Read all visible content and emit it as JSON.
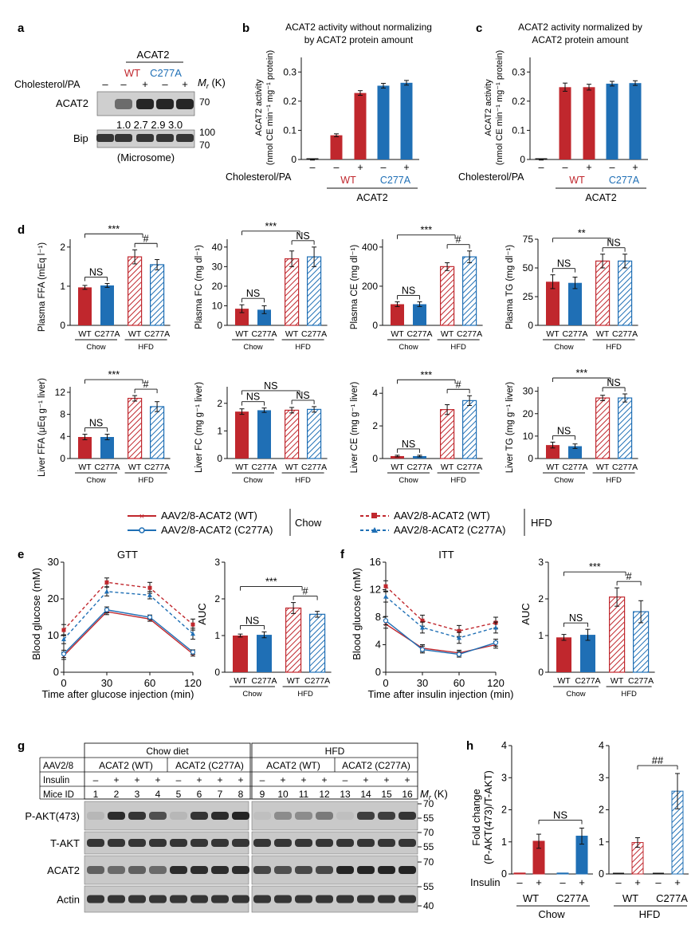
{
  "colors": {
    "wt": "#c0272d",
    "c277a": "#1f6fb5",
    "blot_dark": "#1b1b1b",
    "blot_bg": "#c9c9c9",
    "axis": "#111111"
  },
  "panel_letters": [
    "a",
    "b",
    "c",
    "d",
    "e",
    "f",
    "g",
    "h"
  ],
  "panel_a": {
    "header": "ACAT2",
    "wt": "WT",
    "c277a": "C277A",
    "row_label": "Cholesterol/PA",
    "signs": [
      "–",
      "–",
      "+",
      "–",
      "+"
    ],
    "mr_prefix": "M",
    "mr_sub": "r",
    "mr_unit": " (K)",
    "blot_labels": [
      "ACAT2",
      "Bip"
    ],
    "mw_acat2": "70",
    "mw_bip": [
      "100",
      "70"
    ],
    "quant": "1.0 2.7 2.9 3.0",
    "sample": "(Microsome)"
  },
  "panel_b": {
    "title_line1": "ACAT2 activity without normalizing",
    "title_line2": "by ACAT2 protein amount",
    "ylabel_line1": "ACAT2 activity",
    "ylabel_line2": "(nmol CE min⁻¹ mg⁻¹ protein)",
    "yticks": [
      "0",
      "0.1",
      "0.2",
      "0.3"
    ],
    "row_label": "Cholesterol/PA",
    "signs": [
      "–",
      "–",
      "+",
      "–",
      "+"
    ],
    "wt": "WT",
    "c277a": "C277A",
    "group": "ACAT2"
  },
  "panel_c": {
    "title_line1": "ACAT2 activity normalized by",
    "title_line2": "ACAT2 protein amount",
    "ylabel_line1": "ACAT2 activity",
    "ylabel_line2": "(nmol CE min⁻¹ mg⁻¹ protein)",
    "yticks": [
      "0",
      "0.1",
      "0.2",
      "0.3"
    ],
    "row_label": "Cholesterol/PA",
    "signs": [
      "–",
      "–",
      "+",
      "–",
      "+"
    ],
    "wt": "WT",
    "c277a": "C277A",
    "group": "ACAT2"
  },
  "panel_d": {
    "xlabels": [
      "WT",
      "C277A",
      "WT",
      "C277A"
    ],
    "groups": [
      "Chow",
      "HFD"
    ],
    "plots": [
      {
        "ylabel": "Plasma FFA (mEq l⁻¹)",
        "yticks": [
          "0",
          "1",
          "2"
        ],
        "sig1": "NS",
        "sig2": "***",
        "sig3": "#"
      },
      {
        "ylabel": "Plasma FC (mg dl⁻¹)",
        "yticks": [
          "0",
          "10",
          "20",
          "30",
          "40"
        ],
        "sig1": "NS",
        "sig2": "***",
        "sig3": "NS"
      },
      {
        "ylabel": "Plasma CE (mg dl⁻¹)",
        "yticks": [
          "0",
          "200",
          "400"
        ],
        "sig1": "NS",
        "sig2": "***",
        "sig3": "#"
      },
      {
        "ylabel": "Plasma TG (mg dl⁻¹)",
        "yticks": [
          "0",
          "25",
          "50",
          "75"
        ],
        "sig1": "NS",
        "sig2": "**",
        "sig3": "NS"
      },
      {
        "ylabel": "Liver FFA (μEq g⁻¹ liver)",
        "yticks": [
          "0",
          "4",
          "8",
          "12"
        ],
        "sig1": "NS",
        "sig2": "***",
        "sig3": "#"
      },
      {
        "ylabel": "Liver FC (mg g⁻¹ liver)",
        "yticks": [
          "0",
          "1",
          "2"
        ],
        "sig1": "NS",
        "sig2": "NS",
        "sig3": "NS"
      },
      {
        "ylabel": "Liver CE (mg g⁻¹ liver)",
        "yticks": [
          "0",
          "2",
          "4"
        ],
        "sig1": "NS",
        "sig2": "***",
        "sig3": "#"
      },
      {
        "ylabel": "Liver TG (mg g⁻¹ liver)",
        "yticks": [
          "0",
          "10",
          "20",
          "30"
        ],
        "sig1": "NS",
        "sig2": "***",
        "sig3": "NS"
      }
    ]
  },
  "legend": {
    "chow_wt": "AAV2/8-ACAT2 (WT)",
    "chow_c277a": "AAV2/8-ACAT2 (C277A)",
    "chow": "Chow",
    "hfd_wt": "AAV2/8-ACAT2 (WT)",
    "hfd_c277a": "AAV2/8-ACAT2 (C277A)",
    "hfd": "HFD"
  },
  "panel_e": {
    "title": "GTT",
    "ylabel": "Blood glucose (mM)",
    "xlabel": "Time after glucose injection (min)",
    "xticks": [
      "0",
      "30",
      "60",
      "120"
    ],
    "yticks": [
      "0",
      "10",
      "20",
      "30"
    ],
    "auc_label": "AUC",
    "auc_yticks": [
      "0",
      "1",
      "2",
      "3"
    ],
    "sig1": "NS",
    "sig2": "***",
    "sig3": "#"
  },
  "panel_f": {
    "title": "ITT",
    "ylabel": "Blood glucose (mM)",
    "xlabel": "Time after insulin injection (min)",
    "xticks": [
      "0",
      "30",
      "60",
      "120"
    ],
    "yticks": [
      "0",
      "4",
      "8",
      "12",
      "16"
    ],
    "auc_label": "AUC",
    "auc_yticks": [
      "0",
      "1",
      "2",
      "3"
    ],
    "sig1": "NS",
    "sig2": "***",
    "sig3": "#"
  },
  "panel_g": {
    "aav": "AAV2/8",
    "chow_diet": "Chow diet",
    "hfd": "HFD",
    "acat2_wt": "ACAT2 (WT)",
    "acat2_c277a": "ACAT2 (C277A)",
    "insulin": "Insulin",
    "mice_id": "Mice ID",
    "insulin_signs": [
      "–",
      "+",
      "+",
      "+",
      "–",
      "+",
      "+",
      "+",
      "–",
      "+",
      "+",
      "+",
      "–",
      "+",
      "+",
      "+"
    ],
    "mice": [
      "1",
      "2",
      "3",
      "4",
      "5",
      "6",
      "7",
      "8",
      "9",
      "10",
      "11",
      "12",
      "13",
      "14",
      "15",
      "16"
    ],
    "mr_prefix": "M",
    "mr_sub": "r",
    "mr_unit": " (K)",
    "blot_labels": [
      "P-AKT(473)",
      "T-AKT",
      "ACAT2",
      "Actin"
    ],
    "mw": [
      "70",
      "55",
      "70",
      "55",
      "70",
      "55",
      "40"
    ]
  },
  "panel_h": {
    "ylabel_line1": "Fold change",
    "ylabel_line2": "(P-AKT(473)/T-AKT)",
    "yticks": [
      "0",
      "1",
      "2",
      "3",
      "4"
    ],
    "insulin": "Insulin",
    "signs": [
      "–",
      "+",
      "–",
      "+"
    ],
    "wt": "WT",
    "c277a": "C277A",
    "chow": "Chow",
    "hfd": "HFD",
    "sig_chow": "NS",
    "sig_hfd": "##"
  },
  "chart_data": [
    {
      "type": "bar",
      "panel": "b",
      "categories": [
        "–",
        "WT –",
        "WT +",
        "C277A –",
        "C277A +"
      ],
      "values": [
        0.0,
        0.083,
        0.228,
        0.253,
        0.263
      ],
      "errors": [
        0.002,
        0.005,
        0.008,
        0.008,
        0.008
      ],
      "ylim": [
        0,
        0.35
      ]
    },
    {
      "type": "bar",
      "panel": "c",
      "categories": [
        "–",
        "WT –",
        "WT +",
        "C277A –",
        "C277A +"
      ],
      "values": [
        0.0,
        0.248,
        0.248,
        0.26,
        0.262
      ],
      "errors": [
        0.002,
        0.014,
        0.01,
        0.008,
        0.008
      ],
      "ylim": [
        0,
        0.35
      ]
    },
    {
      "type": "bar",
      "panel": "d-1",
      "categories": [
        "WT",
        "C277A",
        "WT",
        "C277A"
      ],
      "values": [
        0.97,
        1.02,
        1.75,
        1.55
      ],
      "errors": [
        0.05,
        0.05,
        0.18,
        0.13
      ],
      "ylim": [
        0,
        2.2
      ]
    },
    {
      "type": "bar",
      "panel": "d-2",
      "categories": [
        "WT",
        "C277A",
        "WT",
        "C277A"
      ],
      "values": [
        8.5,
        8.0,
        34,
        35
      ],
      "errors": [
        2,
        2,
        4,
        5
      ],
      "ylim": [
        0,
        44
      ]
    },
    {
      "type": "bar",
      "panel": "d-3",
      "categories": [
        "WT",
        "C277A",
        "WT",
        "C277A"
      ],
      "values": [
        108,
        108,
        300,
        350
      ],
      "errors": [
        12,
        12,
        20,
        30
      ],
      "ylim": [
        0,
        440
      ]
    },
    {
      "type": "bar",
      "panel": "d-4",
      "categories": [
        "WT",
        "C277A",
        "WT",
        "C277A"
      ],
      "values": [
        38,
        37,
        56,
        56
      ],
      "errors": [
        6,
        5,
        6,
        6
      ],
      "ylim": [
        0,
        75
      ]
    },
    {
      "type": "bar",
      "panel": "d-5",
      "categories": [
        "WT",
        "C277A",
        "WT",
        "C277A"
      ],
      "values": [
        3.9,
        3.9,
        10.9,
        9.4
      ],
      "errors": [
        0.5,
        0.5,
        0.5,
        0.9
      ],
      "ylim": [
        0,
        13
      ]
    },
    {
      "type": "bar",
      "panel": "d-6",
      "categories": [
        "WT",
        "C277A",
        "WT",
        "C277A"
      ],
      "values": [
        1.7,
        1.75,
        1.75,
        1.78
      ],
      "errors": [
        0.1,
        0.08,
        0.1,
        0.1
      ],
      "ylim": [
        0,
        2.6
      ]
    },
    {
      "type": "bar",
      "panel": "d-7",
      "categories": [
        "WT",
        "C277A",
        "WT",
        "C277A"
      ],
      "values": [
        0.15,
        0.15,
        3.0,
        3.55
      ],
      "errors": [
        0.05,
        0.05,
        0.3,
        0.3
      ],
      "ylim": [
        0,
        4.4
      ]
    },
    {
      "type": "bar",
      "panel": "d-8",
      "categories": [
        "WT",
        "C277A",
        "WT",
        "C277A"
      ],
      "values": [
        6,
        5.5,
        27,
        27
      ],
      "errors": [
        1.3,
        1,
        1.2,
        1.8
      ],
      "ylim": [
        0,
        32
      ]
    },
    {
      "type": "line",
      "panel": "e-GTT",
      "x": [
        0,
        30,
        60,
        120
      ],
      "ylim": [
        0,
        30
      ],
      "series": [
        {
          "name": "AAV2/8-ACAT2 (WT) Chow",
          "values": [
            4.5,
            16.5,
            14.5,
            5.0
          ],
          "errors": [
            1.0,
            0.8,
            0.6,
            0.6
          ]
        },
        {
          "name": "AAV2/8-ACAT2 (C277A) Chow",
          "values": [
            5.0,
            17.0,
            15.0,
            5.5
          ],
          "errors": [
            1.0,
            0.8,
            0.6,
            0.6
          ]
        },
        {
          "name": "AAV2/8-ACAT2 (WT) HFD",
          "values": [
            11.5,
            24.5,
            23.0,
            13.0
          ],
          "errors": [
            1.5,
            1.2,
            1.5,
            1.5
          ]
        },
        {
          "name": "AAV2/8-ACAT2 (C277A) HFD",
          "values": [
            9.0,
            22.0,
            21.0,
            10.5
          ],
          "errors": [
            1.2,
            1.2,
            1.0,
            1.5
          ]
        }
      ]
    },
    {
      "type": "bar",
      "panel": "e-AUC",
      "categories": [
        "WT",
        "C277A",
        "WT",
        "C277A"
      ],
      "values": [
        1.0,
        1.02,
        1.75,
        1.58
      ],
      "errors": [
        0.04,
        0.08,
        0.15,
        0.08
      ],
      "ylim": [
        0,
        3
      ]
    },
    {
      "type": "line",
      "panel": "f-ITT",
      "x": [
        0,
        30,
        60,
        120
      ],
      "ylim": [
        0,
        16
      ],
      "series": [
        {
          "name": "AAV2/8-ACAT2 (WT) Chow",
          "values": [
            7.0,
            3.5,
            2.8,
            4.0
          ],
          "errors": [
            0.6,
            0.5,
            0.4,
            0.5
          ]
        },
        {
          "name": "AAV2/8-ACAT2 (C277A) Chow",
          "values": [
            7.5,
            3.3,
            2.6,
            4.3
          ],
          "errors": [
            0.6,
            0.5,
            0.4,
            0.5
          ]
        },
        {
          "name": "AAV2/8-ACAT2 (WT) HFD",
          "values": [
            12.5,
            7.5,
            6.0,
            7.2
          ],
          "errors": [
            0.8,
            0.8,
            0.8,
            0.8
          ]
        },
        {
          "name": "AAV2/8-ACAT2 (C277A) HFD",
          "values": [
            11.0,
            6.5,
            5.0,
            6.5
          ],
          "errors": [
            0.8,
            0.8,
            0.8,
            0.8
          ]
        }
      ]
    },
    {
      "type": "bar",
      "panel": "f-AUC",
      "categories": [
        "WT",
        "C277A",
        "WT",
        "C277A"
      ],
      "values": [
        0.95,
        1.02,
        2.05,
        1.65
      ],
      "errors": [
        0.08,
        0.15,
        0.25,
        0.3
      ],
      "ylim": [
        0,
        3
      ]
    },
    {
      "type": "bar",
      "panel": "h-Chow",
      "categories": [
        "WT –",
        "WT +",
        "C277A –",
        "C277A +"
      ],
      "values": [
        0.03,
        1.02,
        0.03,
        1.18
      ],
      "errors": [
        0.01,
        0.22,
        0.01,
        0.25
      ],
      "ylim": [
        0,
        4
      ]
    },
    {
      "type": "bar",
      "panel": "h-HFD",
      "categories": [
        "WT –",
        "WT +",
        "C277A –",
        "C277A +"
      ],
      "values": [
        0.0,
        0.98,
        0.0,
        2.58
      ],
      "errors": [
        0.0,
        0.15,
        0.0,
        0.55
      ],
      "ylim": [
        0,
        4
      ]
    }
  ]
}
